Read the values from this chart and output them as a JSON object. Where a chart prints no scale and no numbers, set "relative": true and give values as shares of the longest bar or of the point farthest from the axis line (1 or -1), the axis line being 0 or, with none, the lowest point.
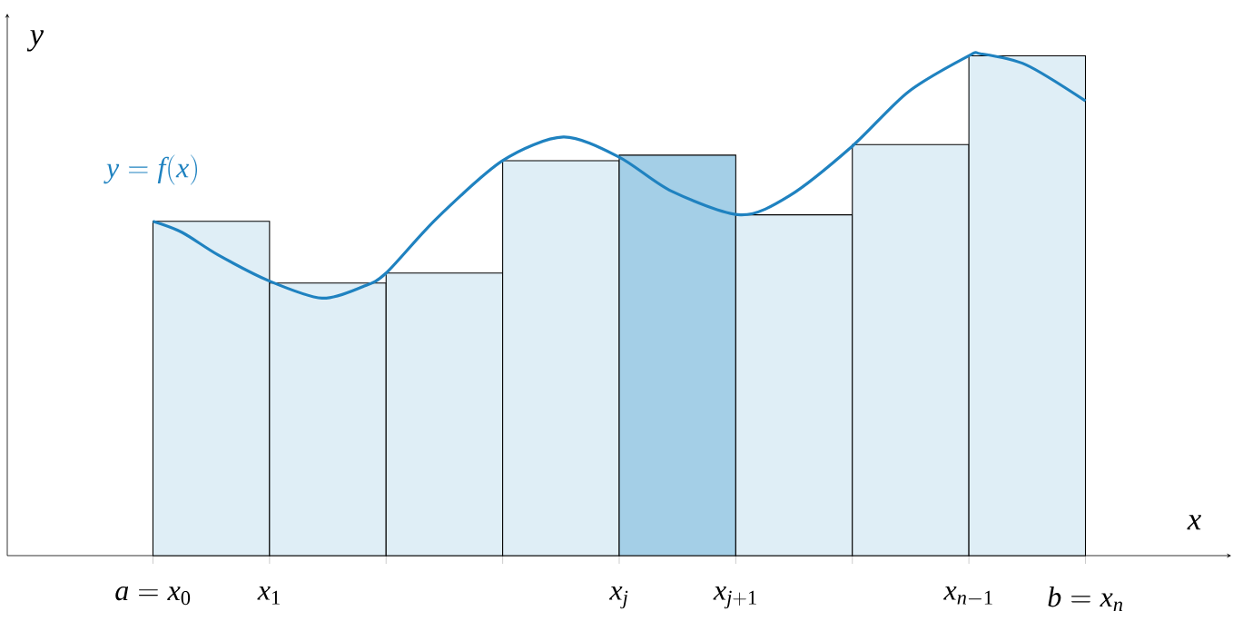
{
  "chart_data": {
    "type": "histogram",
    "relative": true,
    "xlabel": "x",
    "ylabel": "y",
    "xlim": [
      -1.25,
      9.25
    ],
    "xticks": [
      {
        "value": 0,
        "label": "a = x_0"
      },
      {
        "value": 1,
        "label": "x_1"
      },
      {
        "value": 2,
        "label": null
      },
      {
        "value": 3,
        "label": null
      },
      {
        "value": 4,
        "label": "x_j"
      },
      {
        "value": 5,
        "label": "x_{j+1}"
      },
      {
        "value": 6,
        "label": null
      },
      {
        "value": 7,
        "label": "x_{n-1}"
      },
      {
        "value": 8,
        "label": "b = x_n"
      }
    ],
    "series": [
      {
        "bins": [
          0,
          1,
          2,
          3,
          4,
          5,
          6,
          7,
          8
        ],
        "values": [
          0.666,
          0.543,
          0.563,
          0.787,
          0.798,
          0.679,
          0.819,
          0.996
        ],
        "colors": [
          "#dfeef6",
          "#dfeef6",
          "#dfeef6",
          "#dfeef6",
          "#a4cfe7",
          "#dfeef6",
          "#dfeef6",
          "#dfeef6"
        ]
      },
      {
        "type": "line",
        "name": "y = f(x)",
        "color": "#1f82c0",
        "x": [
          0,
          0.25,
          0.56,
          1.0,
          1.45,
          1.8,
          2.0,
          2.43,
          3.0,
          3.52,
          4.0,
          4.45,
          5.04,
          5.46,
          6.0,
          6.48,
          7.0,
          7.1,
          7.49,
          8.0
        ],
        "values": [
          0.666,
          0.644,
          0.599,
          0.547,
          0.513,
          0.536,
          0.563,
          0.671,
          0.787,
          0.834,
          0.794,
          0.726,
          0.679,
          0.717,
          0.816,
          0.924,
          0.996,
          1.0,
          0.978,
          0.906
        ]
      }
    ]
  }
}
